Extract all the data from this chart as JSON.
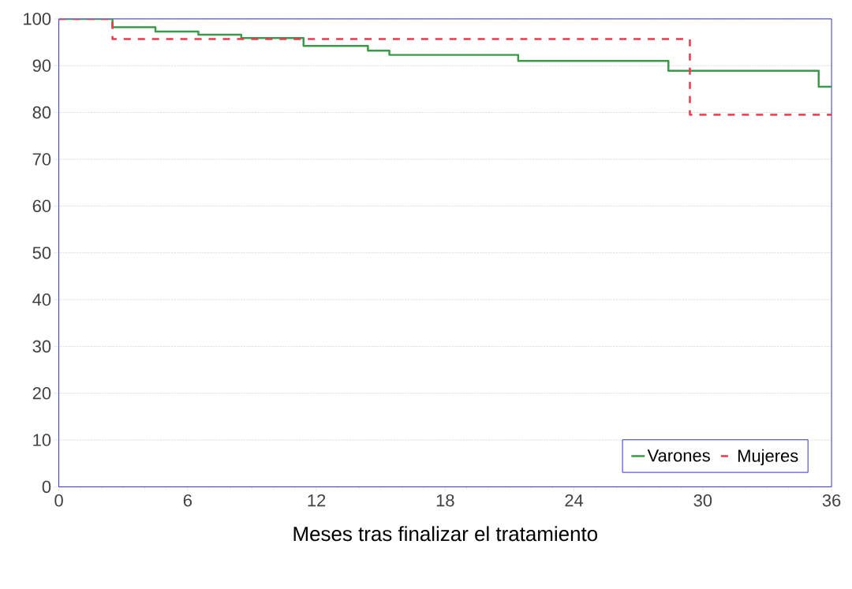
{
  "chart_data": {
    "type": "step",
    "xlabel": "Meses tras finalizar el tratamiento",
    "xlim": [
      0,
      36
    ],
    "xticks": [
      0,
      6,
      12,
      18,
      24,
      30,
      36
    ],
    "ylim": [
      0,
      100
    ],
    "yticks": [
      0,
      10,
      20,
      30,
      40,
      50,
      60,
      70,
      80,
      90,
      100
    ],
    "grid": "y",
    "legend": "bottom right",
    "marker": "none",
    "series": [
      {
        "name": "Varones",
        "color": "#3a9a4a",
        "line_style": "solid",
        "x": [
          0,
          2.5,
          4.5,
          6.5,
          8.5,
          11.4,
          14.4,
          15.4,
          21.4,
          28.4,
          35.4,
          36
        ],
        "values": [
          100,
          98.2,
          97.3,
          96.6,
          95.9,
          94.2,
          93.2,
          92.3,
          91.0,
          88.9,
          85.5,
          85.5
        ]
      },
      {
        "name": "Mujeres",
        "color": "#e83a4a",
        "line_style": "dashed",
        "x": [
          0,
          2.5,
          29.4,
          36
        ],
        "values": [
          100,
          95.7,
          79.5,
          79.5
        ]
      }
    ]
  }
}
